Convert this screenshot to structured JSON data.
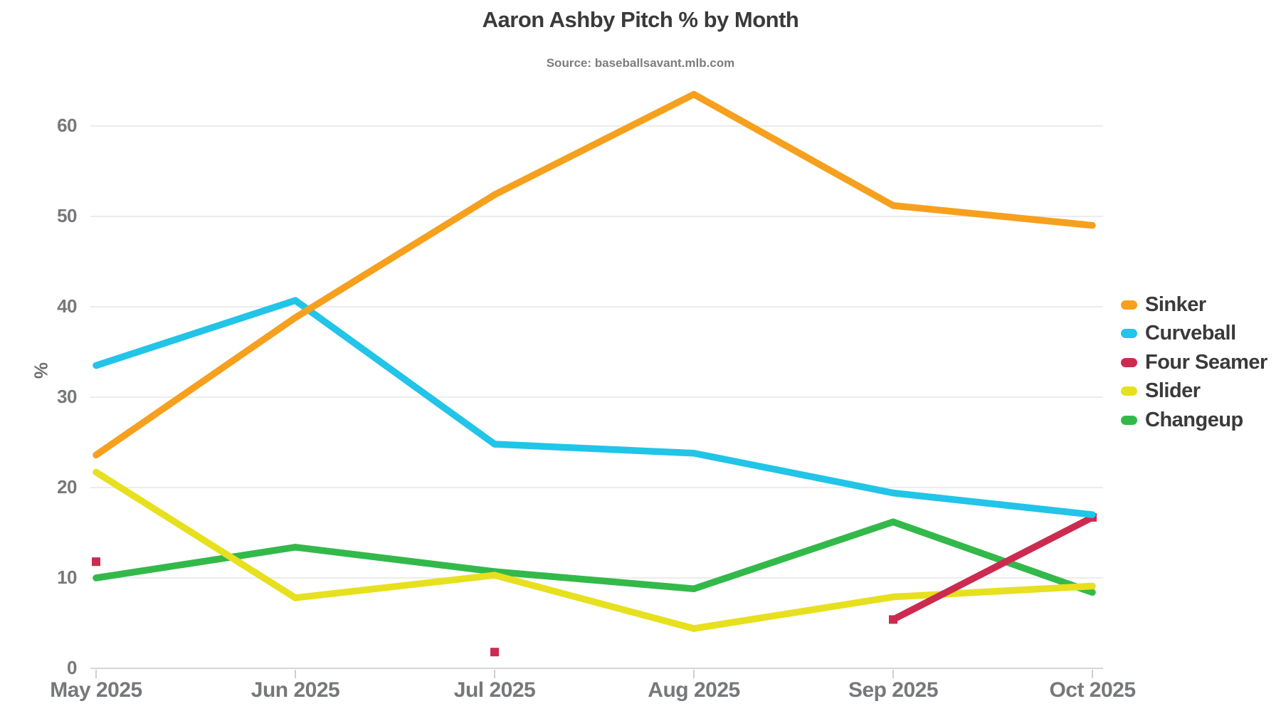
{
  "title": "Aaron Ashby Pitch % by Month",
  "subtitle": "Source: baseballsavant.mlb.com",
  "y_axis_title": "%",
  "colors": {
    "grid": "#ececec",
    "axis_line": "#d6d6d6",
    "tick_mark": "#cfcfcf",
    "tick_text": "#77787b",
    "title_text": "#3a3a3a"
  },
  "chart_data": {
    "type": "line",
    "title": "Aaron Ashby Pitch % by Month",
    "subtitle": "Source: baseballsavant.mlb.com",
    "xlabel": "",
    "ylabel": "%",
    "categories": [
      "May 2025",
      "Jun 2025",
      "Jul 2025",
      "Aug 2025",
      "Sep 2025",
      "Oct 2025"
    ],
    "y_ticks": [
      0,
      10,
      20,
      30,
      40,
      50,
      60
    ],
    "ylim": [
      0,
      65
    ],
    "grid": true,
    "legend_position": "right",
    "series": [
      {
        "name": "Sinker",
        "color": "#F6A01E",
        "marker": "none",
        "values": [
          23.6,
          38.8,
          52.4,
          63.5,
          51.2,
          49.0
        ]
      },
      {
        "name": "Curveball",
        "color": "#22C4E8",
        "marker": "none",
        "values": [
          33.5,
          40.7,
          24.8,
          23.8,
          19.4,
          17.0
        ]
      },
      {
        "name": "Four Seamer",
        "color": "#CC2B4F",
        "marker": "square",
        "values": [
          11.8,
          null,
          1.8,
          null,
          5.4,
          16.7
        ]
      },
      {
        "name": "Slider",
        "color": "#E7E01E",
        "marker": "none",
        "values": [
          21.7,
          7.8,
          10.3,
          4.4,
          7.9,
          9.1
        ]
      },
      {
        "name": "Changeup",
        "color": "#33B94A",
        "marker": "none",
        "values": [
          10.0,
          13.4,
          10.7,
          8.8,
          16.2,
          8.4
        ]
      }
    ]
  }
}
